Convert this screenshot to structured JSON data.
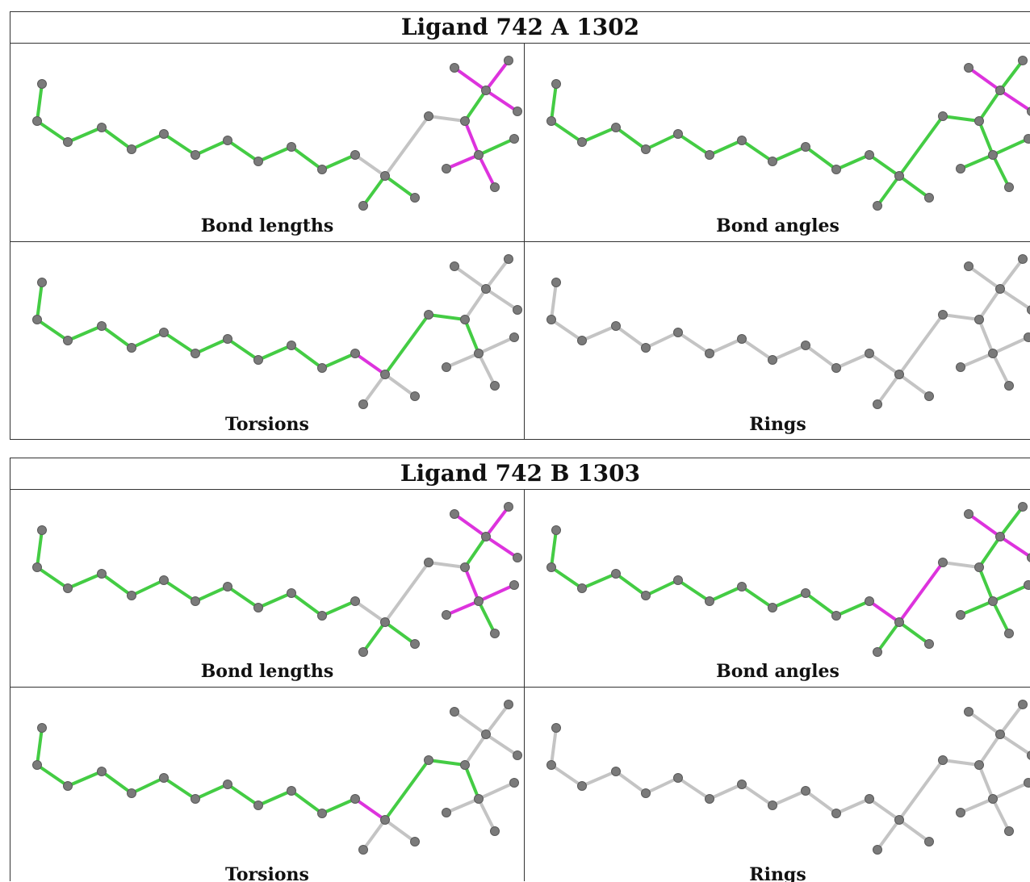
{
  "blocks": [
    {
      "title": "Ligand 742 A 1302",
      "panels": [
        {
          "label": "Bond lengths",
          "scheme": "A_lengths"
        },
        {
          "label": "Bond angles",
          "scheme": "A_angles"
        },
        {
          "label": "Torsions",
          "scheme": "torsions"
        },
        {
          "label": "Rings",
          "scheme": "rings"
        }
      ]
    },
    {
      "title": "Ligand 742 B 1303",
      "panels": [
        {
          "label": "Bond lengths",
          "scheme": "B_lengths"
        },
        {
          "label": "Bond angles",
          "scheme": "B_angles"
        },
        {
          "label": "Torsions",
          "scheme": "torsions"
        },
        {
          "label": "Rings",
          "scheme": "rings"
        }
      ]
    }
  ],
  "colors": {
    "ok": "#44cc44",
    "outlier": "#dd33dd",
    "unassessed": "#c4c4c4",
    "atom": "#7a7a7a"
  }
}
